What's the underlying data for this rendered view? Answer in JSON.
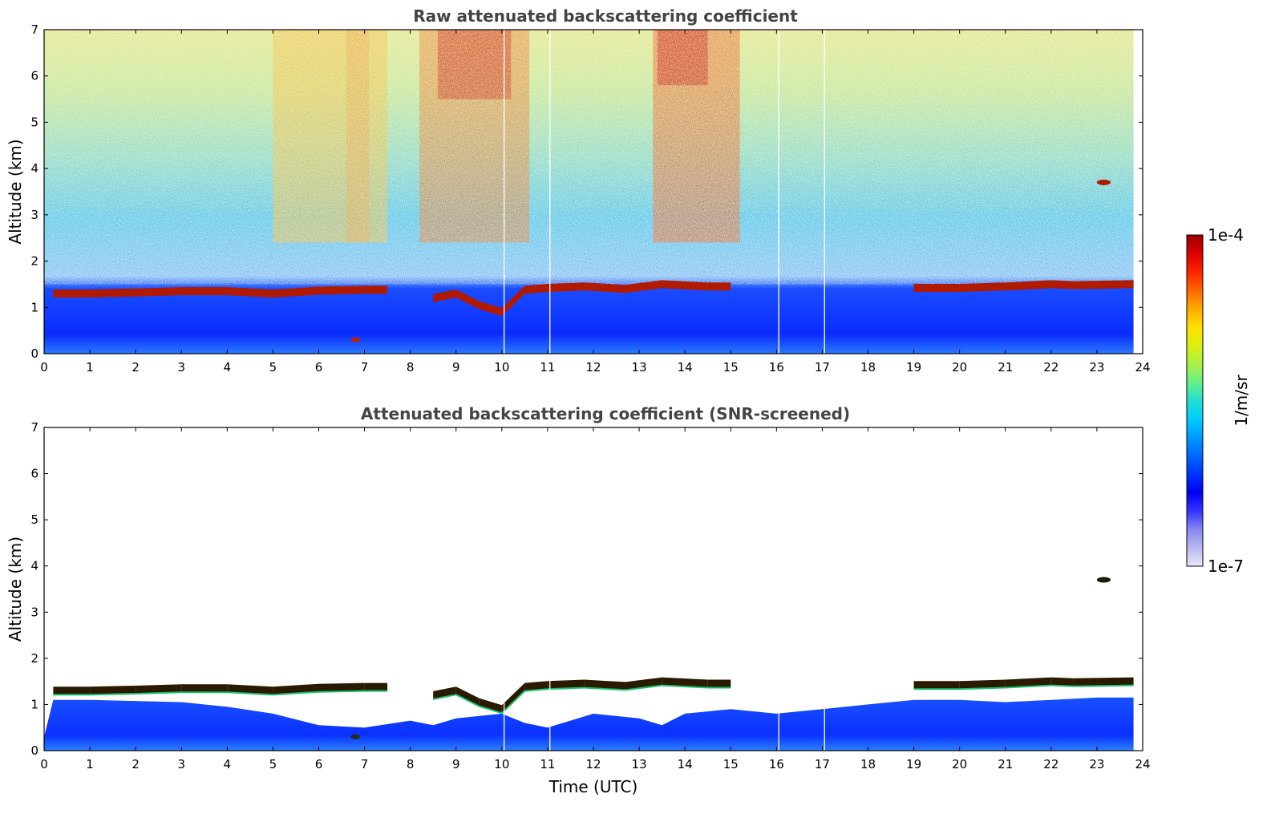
{
  "chart_data": [
    {
      "type": "heatmap",
      "title": "Raw attenuated backscattering coefficient",
      "xlabel": "",
      "ylabel": "Altitude (km)",
      "xlim": [
        0,
        24
      ],
      "ylim": [
        0,
        7
      ],
      "x_ticks": [
        "0",
        "1",
        "2",
        "3",
        "4",
        "5",
        "6",
        "7",
        "8",
        "9",
        "10",
        "11",
        "12",
        "13",
        "14",
        "15",
        "16",
        "17",
        "18",
        "19",
        "20",
        "21",
        "22",
        "23",
        "24"
      ],
      "y_ticks": [
        "0",
        "1",
        "2",
        "3",
        "4",
        "5",
        "6",
        "7"
      ],
      "data_end_time": 23.8,
      "screening": "raw",
      "cloud_layer": [
        [
          0.2,
          1.3
        ],
        [
          1,
          1.3
        ],
        [
          2,
          1.32
        ],
        [
          3,
          1.35
        ],
        [
          4,
          1.35
        ],
        [
          5,
          1.3
        ],
        [
          6,
          1.36
        ],
        [
          7,
          1.38
        ],
        [
          7.5,
          1.38
        ],
        [
          8.5,
          1.2
        ],
        [
          9,
          1.3
        ],
        [
          9.5,
          1.05
        ],
        [
          10,
          0.9
        ],
        [
          10.5,
          1.38
        ],
        [
          11,
          1.42
        ],
        [
          11.8,
          1.45
        ],
        [
          12.7,
          1.4
        ],
        [
          13.5,
          1.5
        ],
        [
          14.5,
          1.45
        ],
        [
          15,
          1.45
        ],
        [
          19,
          1.42
        ],
        [
          20,
          1.42
        ],
        [
          21,
          1.45
        ],
        [
          22,
          1.5
        ],
        [
          22.5,
          1.48
        ],
        [
          23.8,
          1.5
        ]
      ],
      "elevated_cloud": {
        "time": [
          23.0,
          23.3
        ],
        "altitude": 3.7
      },
      "low_feature": {
        "time": [
          6.7,
          6.9
        ],
        "altitude": 0.3
      }
    },
    {
      "type": "heatmap",
      "title": "Attenuated backscattering coefficient (SNR-screened)",
      "xlabel": "Time (UTC)",
      "ylabel": "Altitude (km)",
      "xlim": [
        0,
        24
      ],
      "ylim": [
        0,
        7
      ],
      "x_ticks": [
        "0",
        "1",
        "2",
        "3",
        "4",
        "5",
        "6",
        "7",
        "8",
        "9",
        "10",
        "11",
        "12",
        "13",
        "14",
        "15",
        "16",
        "17",
        "18",
        "19",
        "20",
        "21",
        "22",
        "23",
        "24"
      ],
      "y_ticks": [
        "0",
        "1",
        "2",
        "3",
        "4",
        "5",
        "6",
        "7"
      ],
      "data_end_time": 23.8,
      "screening": "snr",
      "boundary_layer_top": [
        [
          0,
          0.3
        ],
        [
          0.2,
          1.1
        ],
        [
          1,
          1.1
        ],
        [
          3,
          1.05
        ],
        [
          4,
          0.95
        ],
        [
          5,
          0.8
        ],
        [
          6,
          0.55
        ],
        [
          7,
          0.5
        ],
        [
          8,
          0.65
        ],
        [
          8.5,
          0.55
        ],
        [
          9,
          0.7
        ],
        [
          10,
          0.8
        ],
        [
          10.5,
          0.6
        ],
        [
          11,
          0.5
        ],
        [
          12,
          0.8
        ],
        [
          13,
          0.7
        ],
        [
          13.5,
          0.55
        ],
        [
          14,
          0.8
        ],
        [
          15,
          0.9
        ],
        [
          16,
          0.8
        ],
        [
          17,
          0.9
        ],
        [
          18,
          1.0
        ],
        [
          19,
          1.1
        ],
        [
          20,
          1.1
        ],
        [
          21,
          1.05
        ],
        [
          22,
          1.1
        ],
        [
          23,
          1.15
        ],
        [
          23.8,
          1.15
        ]
      ],
      "cloud_layer": [
        [
          0.2,
          1.3
        ],
        [
          1,
          1.3
        ],
        [
          2,
          1.32
        ],
        [
          3,
          1.35
        ],
        [
          4,
          1.35
        ],
        [
          5,
          1.3
        ],
        [
          6,
          1.36
        ],
        [
          7,
          1.38
        ],
        [
          7.5,
          1.38
        ],
        [
          8.5,
          1.2
        ],
        [
          9,
          1.3
        ],
        [
          9.5,
          1.05
        ],
        [
          10,
          0.9
        ],
        [
          10.5,
          1.38
        ],
        [
          11,
          1.42
        ],
        [
          11.8,
          1.45
        ],
        [
          12.7,
          1.4
        ],
        [
          13.5,
          1.5
        ],
        [
          14.5,
          1.45
        ],
        [
          15,
          1.45
        ],
        [
          19,
          1.42
        ],
        [
          20,
          1.42
        ],
        [
          21,
          1.45
        ],
        [
          22,
          1.5
        ],
        [
          22.5,
          1.48
        ],
        [
          23.8,
          1.5
        ]
      ],
      "elevated_cloud": {
        "time": [
          23.0,
          23.3
        ],
        "altitude": 3.7
      },
      "low_feature": {
        "time": [
          6.7,
          6.9
        ],
        "altitude": 0.3
      }
    }
  ],
  "colorbar": {
    "label": "1/m/sr",
    "max_label": "1e-4",
    "min_label": "1e-7",
    "scale": "log",
    "colors": [
      "#e8e8f8",
      "#b8b8f0",
      "#8888f0",
      "#3333ff",
      "#0000f0",
      "#0033ff",
      "#0066ff",
      "#0099ff",
      "#00ccff",
      "#22e0d0",
      "#66f088",
      "#aaf044",
      "#ddf011",
      "#ffe000",
      "#ffaa00",
      "#ff6600",
      "#ff2200",
      "#dd0000",
      "#990000"
    ]
  }
}
